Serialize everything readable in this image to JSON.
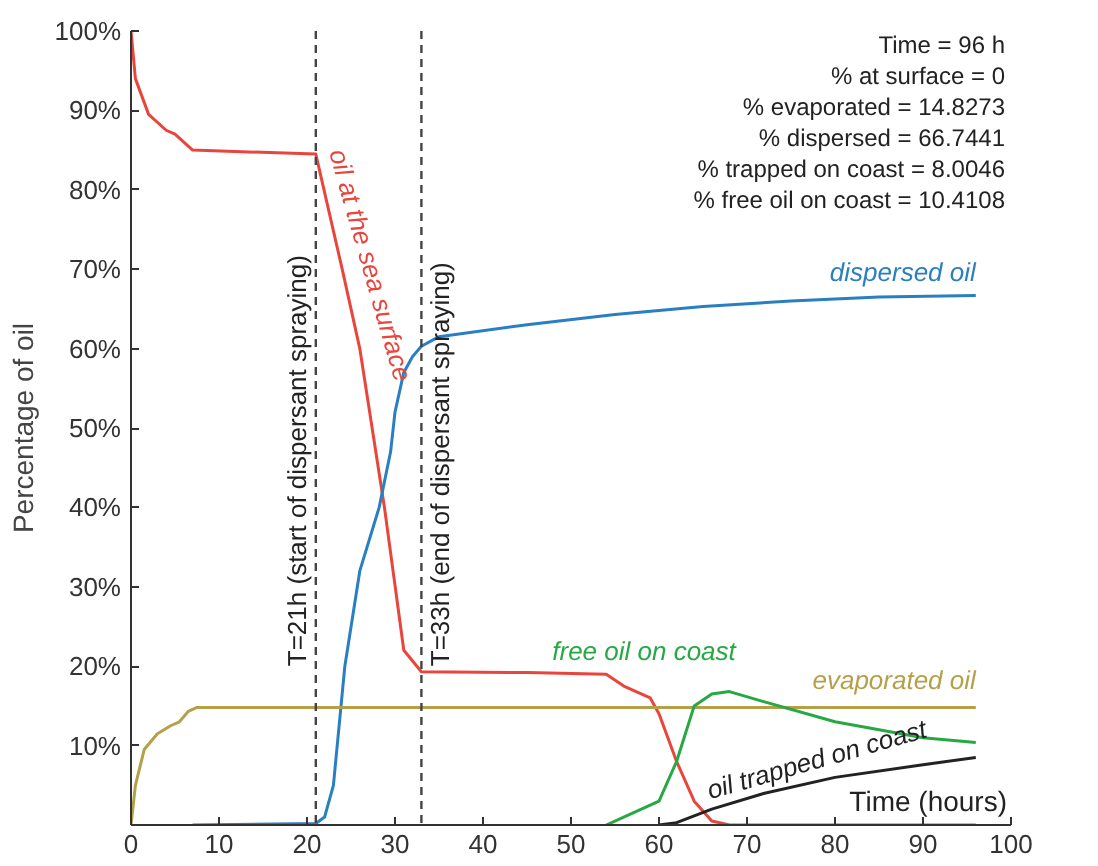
{
  "chart_data": {
    "type": "line",
    "ylabel": "Percentage of oil",
    "xlabel": "Time (hours)",
    "series": [
      {
        "name": "oil at the sea surface",
        "color": "#e8453c",
        "x": [
          0,
          0.5,
          2,
          4,
          5,
          6,
          7,
          21,
          24,
          26,
          28.8,
          31,
          33,
          45,
          54,
          56,
          59,
          60,
          62,
          64,
          66,
          68,
          96
        ],
        "values": [
          100,
          94,
          89.5,
          87.5,
          87,
          86,
          85,
          84.5,
          70,
          60,
          40,
          22,
          19.3,
          19.2,
          19,
          17.5,
          16,
          14,
          8,
          3,
          0.5,
          0,
          0
        ]
      },
      {
        "name": "dispersed oil",
        "color": "#2a7fc0",
        "x": [
          7,
          21,
          22,
          23,
          24.3,
          26,
          28.2,
          29.5,
          30,
          31,
          32,
          33,
          35,
          45,
          55,
          65,
          75,
          85,
          96
        ],
        "values": [
          0,
          0.2,
          1,
          5,
          20,
          32,
          40,
          47,
          52,
          57,
          59,
          60.3,
          61.5,
          63,
          64.3,
          65.3,
          66,
          66.5,
          66.7
        ]
      },
      {
        "name": "evaporated oil",
        "color": "#b5a04a",
        "x": [
          0,
          0.5,
          1.5,
          3,
          4.5,
          5.5,
          6.5,
          7.5,
          96
        ],
        "values": [
          0,
          5,
          9.5,
          11.5,
          12.5,
          13,
          14.3,
          14.8,
          14.8
        ]
      },
      {
        "name": "free oil on coast",
        "color": "#27a844",
        "x": [
          54,
          57,
          60,
          62,
          64,
          66,
          68,
          72,
          80,
          90,
          96
        ],
        "values": [
          0,
          1.5,
          3,
          8,
          15,
          16.5,
          16.8,
          15.5,
          13,
          11,
          10.4
        ]
      },
      {
        "name": "oil trapped on coast",
        "color": "#222222",
        "x": [
          60,
          62,
          66,
          72,
          80,
          90,
          96
        ],
        "values": [
          0,
          0.3,
          2,
          4,
          6,
          7.6,
          8.5
        ]
      }
    ],
    "xlim": [
      0,
      100
    ],
    "xticks": [
      0,
      10,
      20,
      30,
      40,
      50,
      60,
      70,
      80,
      90,
      100
    ],
    "ylim": [
      0,
      100
    ],
    "yticks": [
      {
        "value": 10,
        "label": "10%"
      },
      {
        "value": 20,
        "label": "20%"
      },
      {
        "value": 30,
        "label": "30%"
      },
      {
        "value": 40,
        "label": "40%"
      },
      {
        "value": 50,
        "label": "50%"
      },
      {
        "value": 60,
        "label": "60%"
      },
      {
        "value": 70,
        "label": "70%"
      },
      {
        "value": 80,
        "label": "80%"
      },
      {
        "value": 90,
        "label": "90%"
      },
      {
        "value": 100,
        "label": "100%"
      }
    ],
    "ref_lines": [
      {
        "axis": "x",
        "value": 21,
        "label": "T=21h (start of dispersant spraying)",
        "color": "#444444",
        "line_style": "dashed"
      },
      {
        "axis": "x",
        "value": 33,
        "label": "T=33h (end of dispersant spraying)",
        "color": "#444444",
        "line_style": "dashed"
      }
    ],
    "annotations": [
      "Time = 96 h",
      "% at surface = 0",
      "% evaporated = 14.8273",
      "% dispersed = 66.7441",
      "% trapped on coast = 8.0046",
      "% free oil on coast = 10.4108"
    ],
    "grid": false,
    "legend": false
  }
}
